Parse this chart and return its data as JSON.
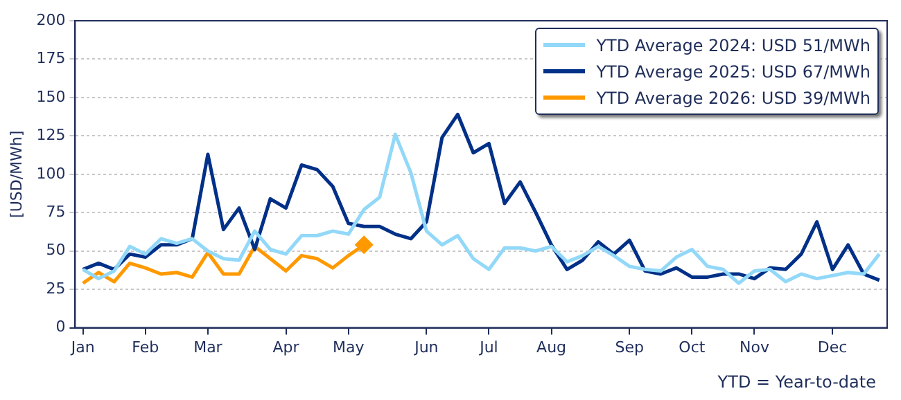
{
  "chart_data": {
    "type": "line",
    "ylabel": "[USD/MWh]",
    "annotations": [
      "YTD = Year-to-date"
    ],
    "categories": [
      "Jan",
      null,
      null,
      null,
      "Feb",
      null,
      null,
      null,
      "Mar",
      null,
      null,
      null,
      null,
      "Apr",
      null,
      null,
      null,
      "May",
      null,
      null,
      null,
      null,
      "Jun",
      null,
      null,
      null,
      "Jul",
      null,
      null,
      null,
      "Aug",
      null,
      null,
      null,
      null,
      "Sep",
      null,
      null,
      null,
      "Oct",
      null,
      null,
      null,
      "Nov",
      null,
      null,
      null,
      null,
      "Dec",
      null,
      null,
      null
    ],
    "series": [
      {
        "name": "YTD Average 2024: USD 51/MWh",
        "color": "#92d8f8",
        "values": [
          38,
          32,
          37,
          53,
          48,
          58,
          55,
          58,
          50,
          45,
          44,
          63,
          51,
          48,
          60,
          60,
          63,
          61,
          77,
          85,
          126,
          101,
          63,
          54,
          60,
          45,
          38,
          52,
          52,
          50,
          53,
          43,
          47,
          53,
          47,
          40,
          38,
          37,
          46,
          51,
          40,
          38,
          29,
          37,
          38,
          30,
          35,
          32,
          34,
          36,
          35,
          48
        ]
      },
      {
        "name": "YTD Average 2025: USD 67/MWh",
        "color": "#003087",
        "values": [
          38,
          42,
          38,
          48,
          46,
          54,
          54,
          58,
          113,
          64,
          78,
          51,
          84,
          78,
          106,
          103,
          92,
          68,
          66,
          66,
          61,
          58,
          69,
          124,
          139,
          114,
          120,
          81,
          95,
          75,
          54,
          38,
          44,
          56,
          48,
          57,
          37,
          35,
          39,
          33,
          33,
          35,
          35,
          32,
          39,
          38,
          48,
          69,
          38,
          54,
          35,
          31
        ]
      },
      {
        "name": "YTD Average 2026: USD 39/MWh",
        "color": "#ff9900",
        "values": [
          29,
          36,
          30,
          42,
          39,
          35,
          36,
          33,
          49,
          35,
          35,
          53,
          45,
          37,
          47,
          45,
          39,
          47,
          54,
          null,
          null,
          null,
          null,
          null,
          null,
          null,
          null,
          null,
          null,
          null,
          null,
          null,
          null,
          null,
          null,
          null,
          null,
          null,
          null,
          null,
          null,
          null,
          null,
          null,
          null,
          null,
          null,
          null,
          null,
          null,
          null,
          null
        ]
      }
    ],
    "ylim": [
      0,
      200
    ],
    "yticks": [
      0,
      25,
      50,
      75,
      100,
      125,
      150,
      175,
      200
    ],
    "grid": "y",
    "legend": "top right"
  }
}
